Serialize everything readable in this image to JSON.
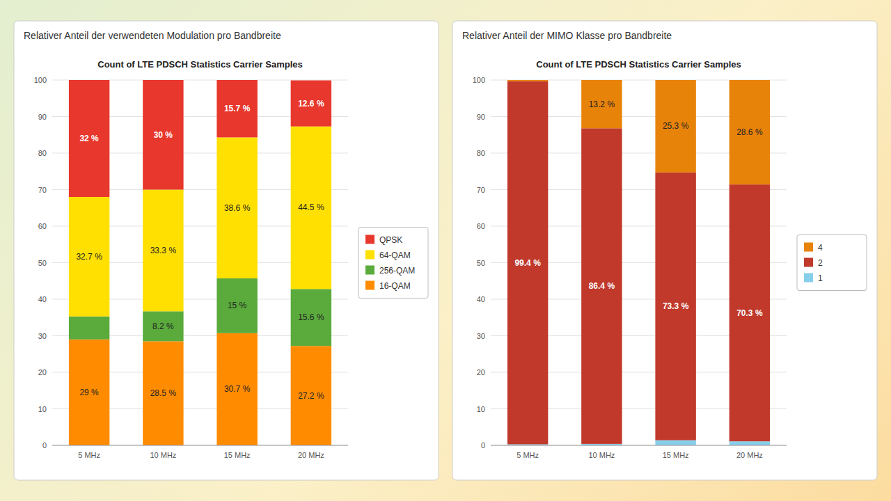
{
  "chart_data": [
    {
      "type": "bar",
      "stacked": true,
      "grid": true,
      "legend": "right",
      "data_labels": true,
      "title": "Count of LTE PDSCH Statistics Carrier Samples",
      "subtitle": "Relativer Anteil der verwendeten Modulation pro Bandbreite",
      "categories": [
        "5 MHz",
        "10 MHz",
        "15 MHz",
        "20 MHz"
      ],
      "ylim": [
        0,
        100
      ],
      "yticks": [
        0,
        10,
        20,
        30,
        40,
        50,
        60,
        70,
        80,
        90,
        100
      ],
      "series": [
        {
          "name": "16-QAM",
          "color": "#FF8C00",
          "values": [
            29.0,
            28.5,
            30.7,
            27.2
          ],
          "value_labels": [
            "29 %",
            "28.5 %",
            "30.7 %",
            "27.2 %"
          ]
        },
        {
          "name": "256-QAM",
          "color": "#5AAB3C",
          "values": [
            6.3,
            8.2,
            15.0,
            15.6
          ],
          "value_labels": [
            null,
            "8.2 %",
            "15 %",
            "15.6 %"
          ]
        },
        {
          "name": "64-QAM",
          "color": "#FFE000",
          "values": [
            32.7,
            33.3,
            38.6,
            44.5
          ],
          "value_labels": [
            "32.7 %",
            "33.3 %",
            "38.6 %",
            "44.5 %"
          ]
        },
        {
          "name": "QPSK",
          "color": "#E8372C",
          "values": [
            32.0,
            30.0,
            15.7,
            12.6
          ],
          "value_labels": [
            "32 %",
            "30 %",
            "15.7 %",
            "12.6 %"
          ]
        }
      ]
    },
    {
      "type": "bar",
      "stacked": true,
      "grid": true,
      "legend": "right",
      "data_labels": true,
      "title": "Count of LTE PDSCH Statistics Carrier Samples",
      "subtitle": "Relativer Anteil der MIMO Klasse pro Bandbreite",
      "categories": [
        "5 MHz",
        "10 MHz",
        "15 MHz",
        "20 MHz"
      ],
      "ylim": [
        0,
        100
      ],
      "yticks": [
        0,
        10,
        20,
        30,
        40,
        50,
        60,
        70,
        80,
        90,
        100
      ],
      "series": [
        {
          "name": "1",
          "color": "#87CEEB",
          "values": [
            0.3,
            0.4,
            1.4,
            1.1
          ],
          "data_labels": false
        },
        {
          "name": "2",
          "color": "#C0392B",
          "values": [
            99.4,
            86.4,
            73.3,
            70.3
          ],
          "value_labels": [
            "99.4 %",
            "86.4 %",
            "73.3 %",
            "70.3 %"
          ]
        },
        {
          "name": "4",
          "color": "#E8830A",
          "values": [
            0.3,
            13.2,
            25.3,
            28.6
          ],
          "value_labels": [
            null,
            "13.2 %",
            "25.3 %",
            "28.6 %"
          ]
        }
      ]
    }
  ]
}
